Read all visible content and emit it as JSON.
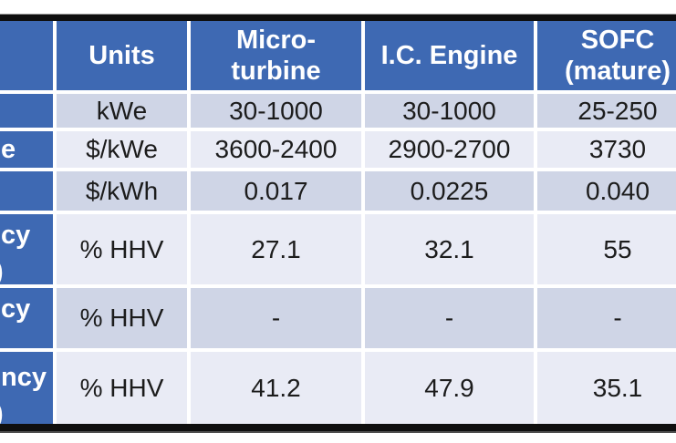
{
  "colors": {
    "header_blue": "#3e69b3",
    "band_light": "#e9ebf5",
    "band_dark": "#cfd5e6",
    "grid_line": "#ffffff",
    "outer_border": "#0f0f0f",
    "body_text": "#1c1c1c",
    "header_text": "#ffffff"
  },
  "table": {
    "header": {
      "blank": "",
      "units": "Units",
      "microturbine_line1": "Micro-",
      "microturbine_line2": "turbine",
      "ic_engine": "I.C. Engine",
      "sofc_line1": "SOFC",
      "sofc_line2": "(mature)"
    },
    "rows": [
      {
        "label_fragment": "",
        "label_fragment_line2": "",
        "units": "kWe",
        "microturbine": "30-1000",
        "ic_engine": "30-1000",
        "sofc": "25-250"
      },
      {
        "label_fragment": "e",
        "label_fragment_line2": "",
        "units": "$/kWe",
        "microturbine": "3600-2400",
        "ic_engine": "2900-2700",
        "sofc": "3730"
      },
      {
        "label_fragment": "",
        "label_fragment_line2": "",
        "units": "$/kWh",
        "microturbine": "0.017",
        "ic_engine": "0.0225",
        "sofc": "0.040"
      },
      {
        "label_fragment": "cy",
        "label_fragment_line2": ")",
        "units": "% HHV",
        "microturbine": "27.1",
        "ic_engine": "32.1",
        "sofc": "55"
      },
      {
        "label_fragment": "cy",
        "label_fragment_line2": "",
        "units": "% HHV",
        "microturbine": "-",
        "ic_engine": "-",
        "sofc": "-"
      },
      {
        "label_fragment": "ncy",
        "label_fragment_line2": ")",
        "units": "% HHV",
        "microturbine": "41.2",
        "ic_engine": "47.9",
        "sofc": "35.1"
      }
    ]
  }
}
